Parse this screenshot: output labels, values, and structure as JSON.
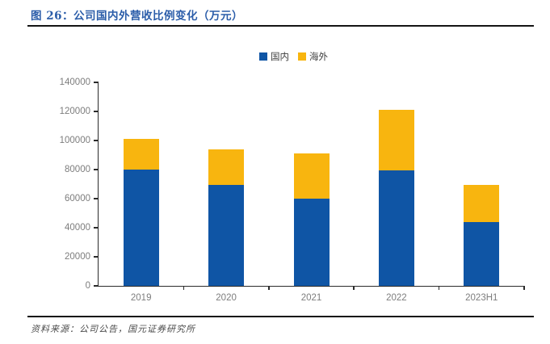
{
  "figure": {
    "title": "图 26：公司国内外营收比例变化（万元）",
    "source": "资料来源：公司公告，国元证券研究所"
  },
  "colors": {
    "domestic_blue": "#0f55a5",
    "overseas_yellow": "#f8b50f",
    "title_blue": "#2b5da9",
    "axis": "#2b2b2b",
    "tick_label_gray": "#7d7d7d"
  },
  "chart_data": {
    "type": "bar",
    "stacked": true,
    "title": "公司国内外营收比例变化（万元）",
    "categories": [
      "2019",
      "2020",
      "2021",
      "2022",
      "2023H1"
    ],
    "series": [
      {
        "name": "国内",
        "color": "#0f55a5",
        "values": [
          79800,
          69300,
          60000,
          79400,
          44100
        ]
      },
      {
        "name": "海外",
        "color": "#f8b50f",
        "values": [
          21300,
          24600,
          31100,
          41900,
          25200
        ]
      }
    ],
    "totals": [
      101100,
      93900,
      91100,
      121300,
      69300
    ],
    "xlabel": "",
    "ylabel": "",
    "ylim": [
      0,
      140000
    ],
    "ytick_step": 20000,
    "grid": false,
    "legend_position": "top-center"
  }
}
